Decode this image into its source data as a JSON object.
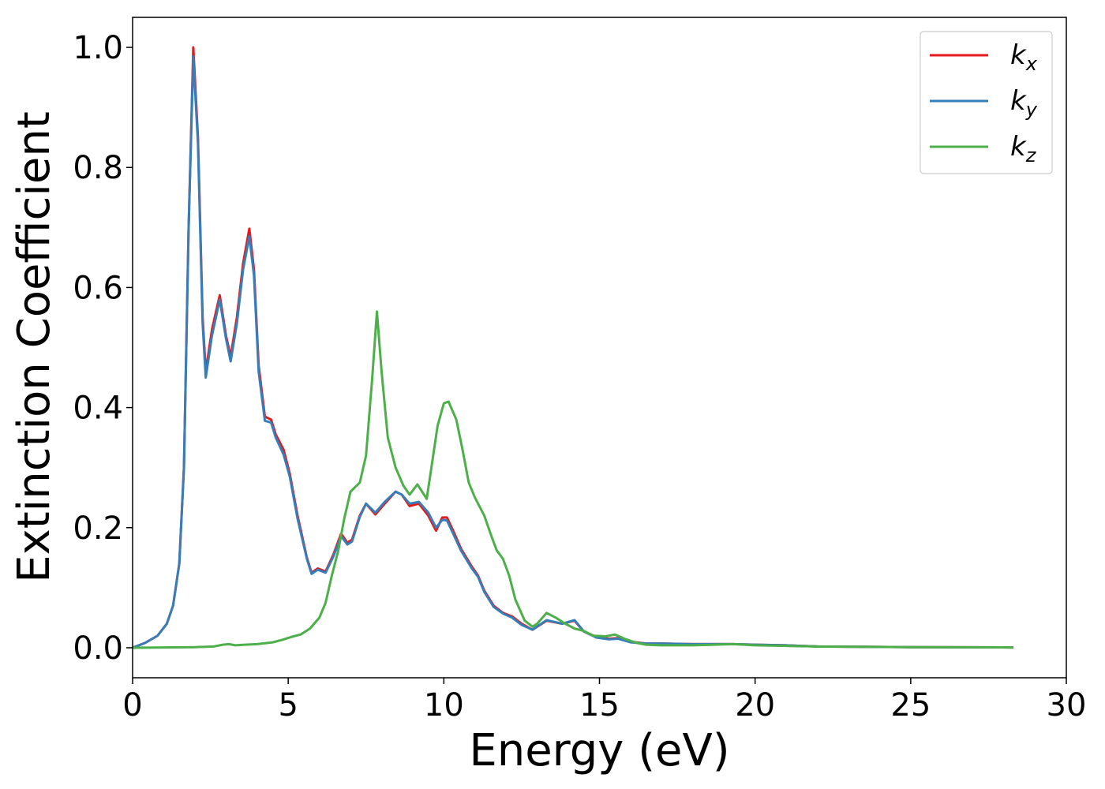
{
  "chart_data": {
    "type": "line",
    "xlabel": "Energy (eV)",
    "ylabel": "Extinction Coefficient",
    "xlim": [
      0,
      30
    ],
    "ylim": [
      -0.05,
      1.05
    ],
    "x_ticks": [
      0,
      5,
      10,
      15,
      20,
      25,
      30
    ],
    "x_tick_labels": [
      "0",
      "5",
      "10",
      "15",
      "20",
      "25",
      "30"
    ],
    "y_ticks": [
      0.0,
      0.2,
      0.4,
      0.6,
      0.8,
      1.0
    ],
    "y_tick_labels": [
      "0.0",
      "0.2",
      "0.4",
      "0.6",
      "0.8",
      "1.0"
    ],
    "grid": false,
    "legend_position": "top-right",
    "series": [
      {
        "name": "k_x",
        "legend_main": "k",
        "legend_sub": "x",
        "color": "#e41a1c",
        "points": [
          [
            0,
            0
          ],
          [
            0.4,
            0.008
          ],
          [
            0.8,
            0.02
          ],
          [
            1.1,
            0.04
          ],
          [
            1.3,
            0.07
          ],
          [
            1.5,
            0.14
          ],
          [
            1.65,
            0.3
          ],
          [
            1.8,
            0.7
          ],
          [
            1.95,
            1.0
          ],
          [
            2.1,
            0.85
          ],
          [
            2.25,
            0.55
          ],
          [
            2.35,
            0.46
          ],
          [
            2.55,
            0.53
          ],
          [
            2.8,
            0.587
          ],
          [
            3.0,
            0.52
          ],
          [
            3.15,
            0.485
          ],
          [
            3.35,
            0.55
          ],
          [
            3.55,
            0.64
          ],
          [
            3.75,
            0.698
          ],
          [
            3.9,
            0.63
          ],
          [
            4.05,
            0.47
          ],
          [
            4.25,
            0.385
          ],
          [
            4.45,
            0.38
          ],
          [
            4.6,
            0.355
          ],
          [
            4.85,
            0.33
          ],
          [
            5.05,
            0.29
          ],
          [
            5.3,
            0.22
          ],
          [
            5.6,
            0.15
          ],
          [
            5.75,
            0.125
          ],
          [
            5.95,
            0.132
          ],
          [
            6.2,
            0.127
          ],
          [
            6.45,
            0.155
          ],
          [
            6.7,
            0.19
          ],
          [
            6.9,
            0.175
          ],
          [
            7.05,
            0.18
          ],
          [
            7.3,
            0.22
          ],
          [
            7.5,
            0.24
          ],
          [
            7.8,
            0.222
          ],
          [
            8.1,
            0.24
          ],
          [
            8.45,
            0.26
          ],
          [
            8.65,
            0.255
          ],
          [
            8.9,
            0.236
          ],
          [
            9.2,
            0.24
          ],
          [
            9.5,
            0.22
          ],
          [
            9.75,
            0.195
          ],
          [
            9.95,
            0.217
          ],
          [
            10.1,
            0.217
          ],
          [
            10.3,
            0.195
          ],
          [
            10.55,
            0.165
          ],
          [
            10.9,
            0.135
          ],
          [
            11.1,
            0.12
          ],
          [
            11.3,
            0.095
          ],
          [
            11.6,
            0.07
          ],
          [
            11.9,
            0.058
          ],
          [
            12.2,
            0.052
          ],
          [
            12.5,
            0.04
          ],
          [
            12.85,
            0.03
          ],
          [
            13.3,
            0.045
          ],
          [
            13.8,
            0.04
          ],
          [
            14.2,
            0.045
          ],
          [
            14.5,
            0.027
          ],
          [
            14.9,
            0.018
          ],
          [
            15.3,
            0.015
          ],
          [
            15.6,
            0.016
          ],
          [
            16.0,
            0.01
          ],
          [
            16.5,
            0.007
          ],
          [
            17.0,
            0.007
          ],
          [
            18.0,
            0.006
          ],
          [
            19.3,
            0.006
          ],
          [
            20.0,
            0.005
          ],
          [
            21.0,
            0.004
          ],
          [
            22.0,
            0.002
          ],
          [
            25.0,
            0.001
          ],
          [
            28.3,
            0.0005
          ]
        ]
      },
      {
        "name": "k_y",
        "legend_main": "k",
        "legend_sub": "y",
        "color": "#377eb8",
        "points": [
          [
            0,
            0
          ],
          [
            0.4,
            0.008
          ],
          [
            0.8,
            0.02
          ],
          [
            1.1,
            0.04
          ],
          [
            1.3,
            0.07
          ],
          [
            1.5,
            0.14
          ],
          [
            1.65,
            0.3
          ],
          [
            1.8,
            0.7
          ],
          [
            1.95,
            0.985
          ],
          [
            2.1,
            0.84
          ],
          [
            2.25,
            0.54
          ],
          [
            2.35,
            0.45
          ],
          [
            2.55,
            0.52
          ],
          [
            2.8,
            0.58
          ],
          [
            3.0,
            0.515
          ],
          [
            3.15,
            0.477
          ],
          [
            3.35,
            0.54
          ],
          [
            3.55,
            0.63
          ],
          [
            3.75,
            0.685
          ],
          [
            3.9,
            0.62
          ],
          [
            4.05,
            0.46
          ],
          [
            4.25,
            0.378
          ],
          [
            4.45,
            0.375
          ],
          [
            4.6,
            0.35
          ],
          [
            4.85,
            0.322
          ],
          [
            5.05,
            0.285
          ],
          [
            5.3,
            0.215
          ],
          [
            5.6,
            0.148
          ],
          [
            5.75,
            0.123
          ],
          [
            5.95,
            0.13
          ],
          [
            6.2,
            0.125
          ],
          [
            6.45,
            0.152
          ],
          [
            6.7,
            0.186
          ],
          [
            6.9,
            0.172
          ],
          [
            7.05,
            0.177
          ],
          [
            7.3,
            0.218
          ],
          [
            7.5,
            0.24
          ],
          [
            7.8,
            0.225
          ],
          [
            8.1,
            0.243
          ],
          [
            8.45,
            0.26
          ],
          [
            8.65,
            0.255
          ],
          [
            8.9,
            0.24
          ],
          [
            9.2,
            0.243
          ],
          [
            9.5,
            0.225
          ],
          [
            9.75,
            0.2
          ],
          [
            9.95,
            0.213
          ],
          [
            10.1,
            0.212
          ],
          [
            10.3,
            0.19
          ],
          [
            10.55,
            0.162
          ],
          [
            10.9,
            0.132
          ],
          [
            11.1,
            0.118
          ],
          [
            11.3,
            0.093
          ],
          [
            11.6,
            0.068
          ],
          [
            11.9,
            0.057
          ],
          [
            12.2,
            0.05
          ],
          [
            12.5,
            0.038
          ],
          [
            12.85,
            0.03
          ],
          [
            13.3,
            0.046
          ],
          [
            13.8,
            0.04
          ],
          [
            14.2,
            0.046
          ],
          [
            14.5,
            0.027
          ],
          [
            14.9,
            0.017
          ],
          [
            15.3,
            0.014
          ],
          [
            15.6,
            0.015
          ],
          [
            16.0,
            0.009
          ],
          [
            16.5,
            0.007
          ],
          [
            17.0,
            0.007
          ],
          [
            18.0,
            0.006
          ],
          [
            19.3,
            0.006
          ],
          [
            20.0,
            0.005
          ],
          [
            21.0,
            0.004
          ],
          [
            22.0,
            0.002
          ],
          [
            25.0,
            0.001
          ],
          [
            28.3,
            0.0005
          ]
        ]
      },
      {
        "name": "k_z",
        "legend_main": "k",
        "legend_sub": "z",
        "color": "#4daf4a",
        "points": [
          [
            0,
            0
          ],
          [
            1.0,
            0.0005
          ],
          [
            2.0,
            0.001
          ],
          [
            2.6,
            0.002
          ],
          [
            2.9,
            0.005
          ],
          [
            3.1,
            0.006
          ],
          [
            3.3,
            0.004
          ],
          [
            3.6,
            0.005
          ],
          [
            4.0,
            0.006
          ],
          [
            4.5,
            0.009
          ],
          [
            4.8,
            0.013
          ],
          [
            5.1,
            0.018
          ],
          [
            5.4,
            0.022
          ],
          [
            5.7,
            0.032
          ],
          [
            6.0,
            0.05
          ],
          [
            6.2,
            0.075
          ],
          [
            6.4,
            0.12
          ],
          [
            6.6,
            0.16
          ],
          [
            6.8,
            0.215
          ],
          [
            7.0,
            0.26
          ],
          [
            7.3,
            0.275
          ],
          [
            7.5,
            0.32
          ],
          [
            7.7,
            0.45
          ],
          [
            7.85,
            0.56
          ],
          [
            8.0,
            0.46
          ],
          [
            8.2,
            0.35
          ],
          [
            8.45,
            0.3
          ],
          [
            8.7,
            0.27
          ],
          [
            8.9,
            0.255
          ],
          [
            9.15,
            0.272
          ],
          [
            9.3,
            0.26
          ],
          [
            9.45,
            0.248
          ],
          [
            9.6,
            0.3
          ],
          [
            9.8,
            0.37
          ],
          [
            10.0,
            0.407
          ],
          [
            10.15,
            0.41
          ],
          [
            10.4,
            0.38
          ],
          [
            10.6,
            0.33
          ],
          [
            10.8,
            0.275
          ],
          [
            11.0,
            0.25
          ],
          [
            11.3,
            0.22
          ],
          [
            11.5,
            0.19
          ],
          [
            11.7,
            0.162
          ],
          [
            11.9,
            0.148
          ],
          [
            12.1,
            0.12
          ],
          [
            12.3,
            0.08
          ],
          [
            12.6,
            0.045
          ],
          [
            12.85,
            0.035
          ],
          [
            13.0,
            0.04
          ],
          [
            13.3,
            0.058
          ],
          [
            13.6,
            0.05
          ],
          [
            13.9,
            0.04
          ],
          [
            14.2,
            0.032
          ],
          [
            14.5,
            0.028
          ],
          [
            14.8,
            0.02
          ],
          [
            15.2,
            0.019
          ],
          [
            15.5,
            0.022
          ],
          [
            15.8,
            0.015
          ],
          [
            16.2,
            0.008
          ],
          [
            16.5,
            0.005
          ],
          [
            17.0,
            0.004
          ],
          [
            18.0,
            0.004
          ],
          [
            19.3,
            0.006
          ],
          [
            20.0,
            0.004
          ],
          [
            21.0,
            0.003
          ],
          [
            22.0,
            0.002
          ],
          [
            25.0,
            0.001
          ],
          [
            28.3,
            0.0005
          ]
        ]
      }
    ]
  }
}
